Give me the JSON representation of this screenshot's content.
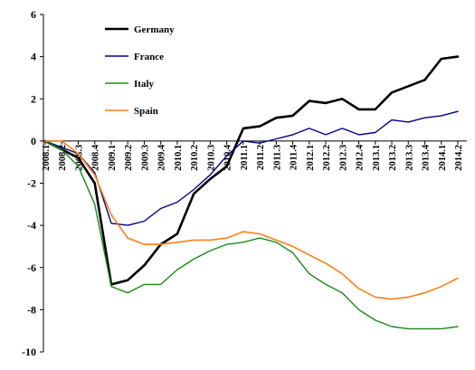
{
  "chart_data": {
    "type": "line",
    "title": "",
    "xlabel": "",
    "ylabel": "",
    "ylim": [
      -10,
      6
    ],
    "yticks": [
      -10,
      -8,
      -6,
      -4,
      -2,
      0,
      2,
      4,
      6
    ],
    "grid": false,
    "legend_position": "top-left",
    "categories": [
      "2008.1",
      "2008.2",
      "2008.3",
      "2008.4",
      "2009.1",
      "2009.2",
      "2009.3",
      "2009.4",
      "2010.1",
      "2010.2",
      "2010.3",
      "2010.4",
      "2011.1",
      "2011.2",
      "2011.3",
      "2011.4",
      "2012.1",
      "2012.2",
      "2012.3",
      "2012.4",
      "2013.1",
      "2013.2",
      "2013.3",
      "2013.4",
      "2014.1",
      "2014.2"
    ],
    "series": [
      {
        "name": "Germany",
        "color": "#000000",
        "width": 2.6,
        "values": [
          0,
          -0.4,
          -0.8,
          -2.0,
          -6.8,
          -6.6,
          -5.9,
          -4.9,
          -4.4,
          -2.5,
          -1.8,
          -1.2,
          0.6,
          0.7,
          1.1,
          1.2,
          1.9,
          1.8,
          2.0,
          1.5,
          1.5,
          2.3,
          2.6,
          2.9,
          3.9,
          4.0
        ]
      },
      {
        "name": "France",
        "color": "#000080",
        "width": 1.4,
        "values": [
          0,
          -0.3,
          -0.6,
          -1.5,
          -3.9,
          -4.0,
          -3.8,
          -3.2,
          -2.9,
          -2.3,
          -1.6,
          -0.7,
          0.0,
          -0.1,
          0.1,
          0.3,
          0.6,
          0.3,
          0.6,
          0.3,
          0.4,
          1.0,
          0.9,
          1.1,
          1.2,
          1.4
        ]
      },
      {
        "name": "Italy",
        "color": "#1a8a1a",
        "width": 1.4,
        "values": [
          0,
          -0.4,
          -1.2,
          -3.0,
          -6.9,
          -7.2,
          -6.8,
          -6.8,
          -6.1,
          -5.6,
          -5.2,
          -4.9,
          -4.8,
          -4.6,
          -4.8,
          -5.3,
          -6.3,
          -6.8,
          -7.2,
          -8.0,
          -8.5,
          -8.8,
          -8.9,
          -8.9,
          -8.9,
          -8.8
        ]
      },
      {
        "name": "Spain",
        "color": "#ff7f1a",
        "width": 1.6,
        "values": [
          0,
          0.0,
          -0.6,
          -1.6,
          -3.5,
          -4.6,
          -4.9,
          -4.9,
          -4.8,
          -4.7,
          -4.7,
          -4.6,
          -4.3,
          -4.4,
          -4.7,
          -5.0,
          -5.4,
          -5.8,
          -6.3,
          -7.0,
          -7.4,
          -7.5,
          -7.4,
          -7.2,
          -6.9,
          -6.5
        ]
      }
    ]
  }
}
